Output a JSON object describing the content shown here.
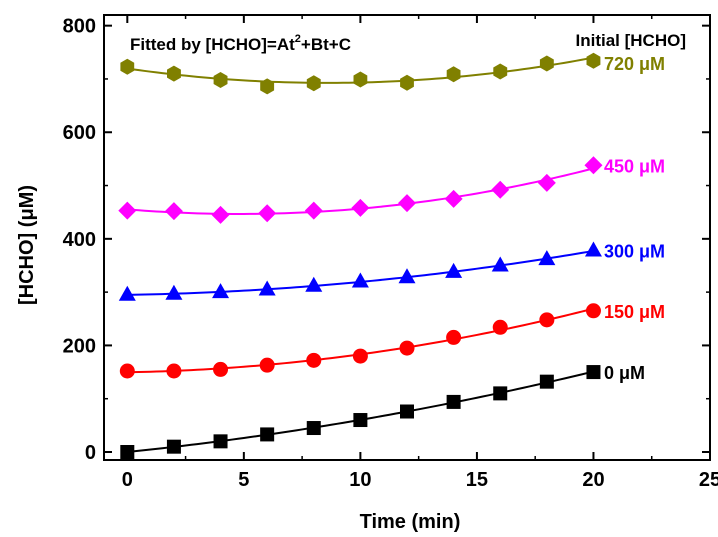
{
  "chart_data": {
    "type": "scatter",
    "title": "",
    "xlabel": "Time (min)",
    "ylabel": "[HCHO] (μM)",
    "xlim": [
      -1,
      25
    ],
    "ylim": [
      -15,
      820
    ],
    "xticks": [
      "0",
      "5",
      "10",
      "15",
      "20",
      "25"
    ],
    "yticks": [
      "0",
      "200",
      "400",
      "600",
      "800"
    ],
    "annotation": {
      "fit_prefix": "Fitted by [HCHO]=At",
      "fit_sup": "2",
      "fit_suffix": "+Bt+C"
    },
    "legend_title": "Initial [HCHO]",
    "grid": false,
    "x": [
      0,
      2,
      4,
      6,
      8,
      10,
      12,
      14,
      16,
      18,
      20
    ],
    "series": [
      {
        "name": "0 μM",
        "color": "#000000",
        "marker": "square",
        "values": [
          0,
          10,
          20,
          33,
          45,
          60,
          76,
          94,
          110,
          132,
          150
        ]
      },
      {
        "name": "150 μM",
        "color": "#ff0000",
        "marker": "circle",
        "values": [
          152,
          152,
          155,
          163,
          172,
          180,
          195,
          215,
          234,
          248,
          265
        ]
      },
      {
        "name": "300 μM",
        "color": "#0000ff",
        "marker": "triangle",
        "values": [
          295,
          297,
          300,
          305,
          312,
          320,
          328,
          338,
          350,
          362,
          378
        ]
      },
      {
        "name": "450 μM",
        "color": "#ff00ff",
        "marker": "diamond",
        "values": [
          453,
          452,
          445,
          448,
          453,
          458,
          467,
          475,
          492,
          505,
          538
        ]
      },
      {
        "name": "720 μM",
        "color": "#808000",
        "marker": "hexagon",
        "values": [
          723,
          710,
          698,
          686,
          692,
          699,
          693,
          709,
          714,
          729,
          734
        ]
      }
    ]
  }
}
